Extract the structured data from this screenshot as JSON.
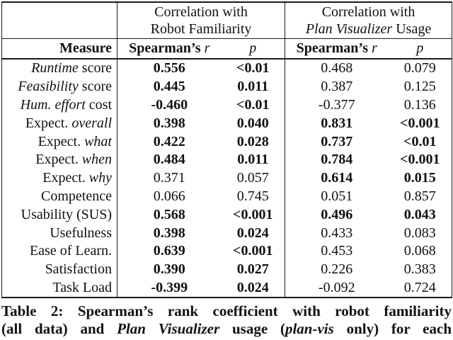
{
  "table": {
    "group_headers": [
      {
        "line1": "Correlation with",
        "line2": [
          {
            "text": "Robot Familiarity",
            "italic": false
          }
        ]
      },
      {
        "line1": "Correlation with",
        "line2": [
          {
            "text": "Plan Visualizer",
            "italic": true
          },
          {
            "text": " Usage",
            "italic": false
          }
        ]
      }
    ],
    "column_headers": {
      "measure": "Measure",
      "spearman_label": "Spearman’s",
      "r_symbol": "r",
      "p_symbol": "p"
    },
    "rows": [
      {
        "measure": [
          {
            "text": "Runtime",
            "italic": true
          },
          {
            "text": " score",
            "italic": false
          }
        ],
        "cells": [
          {
            "text": "0.556",
            "bold": true
          },
          {
            "text": "<0.01",
            "bold": true
          },
          {
            "text": "0.468",
            "bold": false
          },
          {
            "text": "0.079",
            "bold": false
          }
        ]
      },
      {
        "measure": [
          {
            "text": "Feasibility",
            "italic": true
          },
          {
            "text": " score",
            "italic": false
          }
        ],
        "cells": [
          {
            "text": "0.445",
            "bold": true
          },
          {
            "text": "0.011",
            "bold": true
          },
          {
            "text": "0.387",
            "bold": false
          },
          {
            "text": "0.125",
            "bold": false
          }
        ]
      },
      {
        "measure": [
          {
            "text": "Hum. effort",
            "italic": true
          },
          {
            "text": " cost",
            "italic": false
          }
        ],
        "cells": [
          {
            "text": "-0.460",
            "bold": true
          },
          {
            "text": "<0.01",
            "bold": true
          },
          {
            "text": "-0.377",
            "bold": false
          },
          {
            "text": "0.136",
            "bold": false
          }
        ]
      },
      {
        "measure": [
          {
            "text": "Expect. ",
            "italic": false
          },
          {
            "text": "overall",
            "italic": true
          }
        ],
        "cells": [
          {
            "text": "0.398",
            "bold": true
          },
          {
            "text": "0.040",
            "bold": true
          },
          {
            "text": "0.831",
            "bold": true
          },
          {
            "text": "<0.001",
            "bold": true
          }
        ]
      },
      {
        "measure": [
          {
            "text": "Expect. ",
            "italic": false
          },
          {
            "text": "what",
            "italic": true
          }
        ],
        "cells": [
          {
            "text": "0.422",
            "bold": true
          },
          {
            "text": "0.028",
            "bold": true
          },
          {
            "text": "0.737",
            "bold": true
          },
          {
            "text": "<0.01",
            "bold": true
          }
        ]
      },
      {
        "measure": [
          {
            "text": "Expect. ",
            "italic": false
          },
          {
            "text": "when",
            "italic": true
          }
        ],
        "cells": [
          {
            "text": "0.484",
            "bold": true
          },
          {
            "text": "0.011",
            "bold": true
          },
          {
            "text": "0.784",
            "bold": true
          },
          {
            "text": "<0.001",
            "bold": true
          }
        ]
      },
      {
        "measure": [
          {
            "text": "Expect. ",
            "italic": false
          },
          {
            "text": "why",
            "italic": true
          }
        ],
        "cells": [
          {
            "text": "0.371",
            "bold": false
          },
          {
            "text": "0.057",
            "bold": false
          },
          {
            "text": "0.614",
            "bold": true
          },
          {
            "text": "0.015",
            "bold": true
          }
        ]
      },
      {
        "measure": [
          {
            "text": "Competence",
            "italic": false
          }
        ],
        "cells": [
          {
            "text": "0.066",
            "bold": false
          },
          {
            "text": "0.745",
            "bold": false
          },
          {
            "text": "0.051",
            "bold": false
          },
          {
            "text": "0.857",
            "bold": false
          }
        ]
      },
      {
        "measure": [
          {
            "text": "Usability (SUS)",
            "italic": false
          }
        ],
        "cells": [
          {
            "text": "0.568",
            "bold": true
          },
          {
            "text": "<0.001",
            "bold": true
          },
          {
            "text": "0.496",
            "bold": true
          },
          {
            "text": "0.043",
            "bold": true
          }
        ]
      },
      {
        "measure": [
          {
            "text": "Usefulness",
            "italic": false
          }
        ],
        "cells": [
          {
            "text": "0.398",
            "bold": true
          },
          {
            "text": "0.024",
            "bold": true
          },
          {
            "text": "0.433",
            "bold": false
          },
          {
            "text": "0.083",
            "bold": false
          }
        ]
      },
      {
        "measure": [
          {
            "text": "Ease of Learn.",
            "italic": false
          }
        ],
        "cells": [
          {
            "text": "0.639",
            "bold": true
          },
          {
            "text": "<0.001",
            "bold": true
          },
          {
            "text": "0.453",
            "bold": false
          },
          {
            "text": "0.068",
            "bold": false
          }
        ]
      },
      {
        "measure": [
          {
            "text": "Satisfaction",
            "italic": false
          }
        ],
        "cells": [
          {
            "text": "0.390",
            "bold": true
          },
          {
            "text": "0.027",
            "bold": true
          },
          {
            "text": "0.226",
            "bold": false
          },
          {
            "text": "0.383",
            "bold": false
          }
        ]
      },
      {
        "measure": [
          {
            "text": "Task Load",
            "italic": false
          }
        ],
        "cells": [
          {
            "text": "-0.399",
            "bold": true
          },
          {
            "text": "0.024",
            "bold": true
          },
          {
            "text": "-0.092",
            "bold": false
          },
          {
            "text": "0.724",
            "bold": false
          }
        ]
      }
    ]
  },
  "caption": {
    "lines": [
      [
        {
          "text": "Table 2: Spearman’s rank coefficient with robot familiarity",
          "italic": false
        }
      ],
      [
        {
          "text": "(all data) and ",
          "italic": false
        },
        {
          "text": "Plan Visualizer",
          "italic": true
        },
        {
          "text": " usage (",
          "italic": false
        },
        {
          "text": "plan-vis",
          "italic": true
        },
        {
          "text": " only) for each",
          "italic": false
        }
      ]
    ]
  },
  "colors": {
    "text": "#111111",
    "border": "#1a1a1a",
    "background": "#ffffff"
  }
}
